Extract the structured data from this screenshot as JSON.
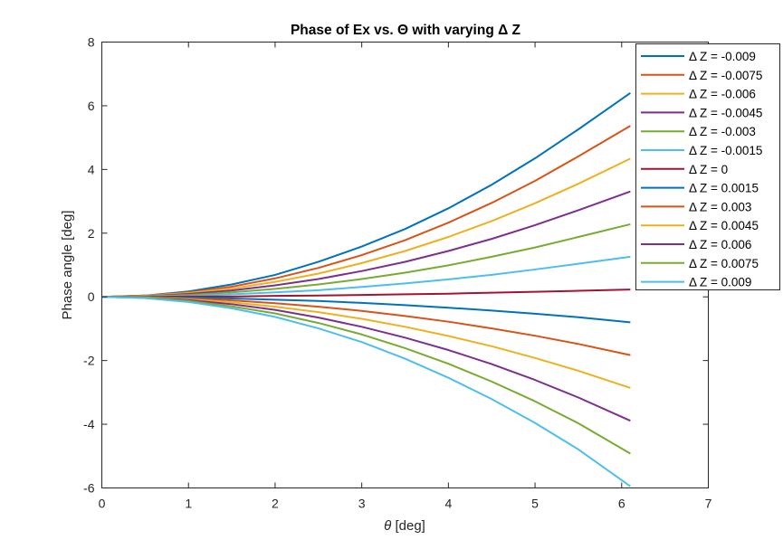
{
  "chart_data": {
    "type": "line",
    "title": "Phase of Ex vs. Θ with varying Δ Z",
    "xlabel_symbol": "θ",
    "xlabel_unit": " [deg]",
    "ylabel": "Phase angle [deg]",
    "xlim": [
      0,
      7
    ],
    "ylim": [
      -6,
      8
    ],
    "xticks": [
      "0",
      "1",
      "2",
      "3",
      "4",
      "5",
      "6",
      "7"
    ],
    "yticks": [
      "-6",
      "-4",
      "-2",
      "0",
      "2",
      "4",
      "6",
      "8"
    ],
    "grid": false,
    "legend_position": "top-right",
    "x": [
      0,
      0.5,
      1.0,
      1.5,
      2.0,
      2.5,
      3.0,
      3.5,
      4.0,
      4.5,
      5.0,
      5.5,
      6.1
    ],
    "series": [
      {
        "name": "Δ Z = -0.009",
        "color": "#0072BD",
        "values": [
          0,
          0.04,
          0.17,
          0.39,
          0.69,
          1.1,
          1.58,
          2.13,
          2.78,
          3.52,
          4.35,
          5.26,
          6.4
        ]
      },
      {
        "name": "Δ Z = -0.0075",
        "color": "#D95319",
        "values": [
          0,
          0.04,
          0.14,
          0.32,
          0.58,
          0.91,
          1.31,
          1.78,
          2.33,
          2.95,
          3.64,
          4.41,
          5.37
        ]
      },
      {
        "name": "Δ Z = -0.006",
        "color": "#EDB120",
        "values": [
          0,
          0.03,
          0.12,
          0.26,
          0.47,
          0.73,
          1.06,
          1.44,
          1.88,
          2.38,
          2.94,
          3.55,
          4.34
        ]
      },
      {
        "name": "Δ Z = -0.0045",
        "color": "#7E2F8E",
        "values": [
          0,
          0.02,
          0.09,
          0.2,
          0.36,
          0.56,
          0.81,
          1.1,
          1.44,
          1.82,
          2.25,
          2.72,
          3.31
        ]
      },
      {
        "name": "Δ Z = -0.003",
        "color": "#77AC30",
        "values": [
          0,
          0.02,
          0.06,
          0.14,
          0.25,
          0.39,
          0.56,
          0.76,
          0.99,
          1.26,
          1.55,
          1.88,
          2.28
        ]
      },
      {
        "name": "Δ Z = -0.0015",
        "color": "#4DBEEE",
        "values": [
          0,
          0.01,
          0.03,
          0.08,
          0.14,
          0.21,
          0.31,
          0.42,
          0.55,
          0.69,
          0.86,
          1.04,
          1.26
        ]
      },
      {
        "name": "Δ Z = 0",
        "color": "#A2142F",
        "values": [
          0,
          0.0,
          0.01,
          0.01,
          0.03,
          0.04,
          0.06,
          0.08,
          0.1,
          0.13,
          0.16,
          0.19,
          0.23
        ]
      },
      {
        "name": "Δ Z = 0.0015",
        "color": "#0072BD",
        "values": [
          0,
          -0.01,
          -0.02,
          -0.05,
          -0.09,
          -0.13,
          -0.19,
          -0.26,
          -0.34,
          -0.43,
          -0.53,
          -0.64,
          -0.8
        ]
      },
      {
        "name": "Δ Z = 0.003",
        "color": "#D95319",
        "values": [
          0,
          -0.01,
          -0.05,
          -0.11,
          -0.2,
          -0.31,
          -0.44,
          -0.6,
          -0.78,
          -0.99,
          -1.22,
          -1.48,
          -1.83
        ]
      },
      {
        "name": "Δ Z = 0.0045",
        "color": "#EDB120",
        "values": [
          0,
          -0.02,
          -0.08,
          -0.17,
          -0.31,
          -0.48,
          -0.69,
          -0.94,
          -1.23,
          -1.55,
          -1.92,
          -2.32,
          -2.86
        ]
      },
      {
        "name": "Δ Z = 0.006",
        "color": "#7E2F8E",
        "values": [
          0,
          -0.03,
          -0.1,
          -0.23,
          -0.41,
          -0.65,
          -0.94,
          -1.28,
          -1.67,
          -2.11,
          -2.61,
          -3.16,
          -3.89
        ]
      },
      {
        "name": "Δ Z = 0.0075",
        "color": "#77AC30",
        "values": [
          0,
          -0.03,
          -0.13,
          -0.3,
          -0.52,
          -0.82,
          -1.18,
          -1.61,
          -2.1,
          -2.66,
          -3.28,
          -3.97,
          -4.92
        ]
      },
      {
        "name": "Δ Z = 0.009",
        "color": "#4DBEEE",
        "values": [
          0,
          -0.04,
          -0.16,
          -0.36,
          -0.63,
          -0.99,
          -1.42,
          -1.94,
          -2.54,
          -3.21,
          -3.96,
          -4.79,
          -5.95
        ]
      }
    ]
  }
}
